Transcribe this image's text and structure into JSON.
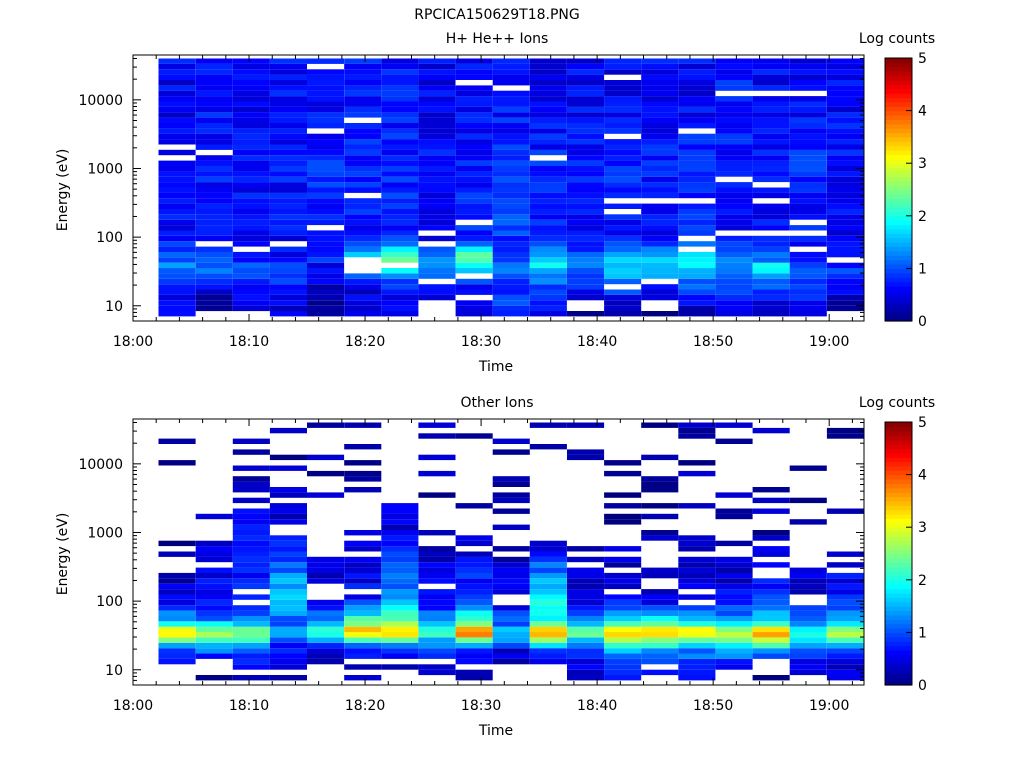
{
  "figure_title": "RPCICA150629T18.PNG",
  "colorbar": {
    "label": "Log counts",
    "ticks": [
      "0",
      "1",
      "2",
      "3",
      "4",
      "5"
    ],
    "range": [
      0,
      5
    ],
    "colormap": [
      "#00007f",
      "#0000ff",
      "#007fff",
      "#00ffff",
      "#7fff7f",
      "#ffff00",
      "#ff7f00",
      "#ff0000",
      "#7f0000"
    ]
  },
  "chart_data": [
    {
      "type": "heatmap",
      "title": "H+ He++ Ions",
      "xlabel": "Time",
      "ylabel": "Energy (eV)",
      "x_ticks": [
        "18:00",
        "18:10",
        "18:20",
        "18:30",
        "18:40",
        "18:50",
        "19:00"
      ],
      "x_range_minutes": [
        0,
        63
      ],
      "y_scale": "log",
      "y_ticks": [
        "10",
        "100",
        "1000",
        "10000"
      ],
      "y_range": [
        6,
        45000
      ],
      "x_bins_start_minutes": [
        2.2,
        5.4,
        8.6,
        11.8,
        15.0,
        18.2,
        21.4,
        24.6,
        27.8,
        31.0,
        34.2,
        37.4,
        40.6,
        43.8,
        47.0,
        50.2,
        53.4,
        56.6,
        59.8
      ],
      "x_bin_width_minutes": 3.2,
      "energy_band_summary": [
        {
          "energy_eV": "10",
          "log_counts": [
            0.6,
            0.0,
            0.6,
            0.5,
            0.3,
            0.4,
            0.6,
            0.0,
            0.4,
            1.0,
            0.7,
            0.0,
            0.4,
            0.0,
            0.4,
            0.5,
            0.5,
            0.7,
            0.0
          ]
        },
        {
          "energy_eV": "20",
          "log_counts": [
            0.6,
            0.8,
            0.6,
            0.7,
            0.4,
            0.6,
            0.8,
            0.7,
            0.8,
            0.9,
            1.0,
            0.9,
            1.1,
            1.0,
            1.1,
            0.9,
            1.0,
            0.8,
            0.7
          ]
        },
        {
          "energy_eV": "35",
          "log_counts": [
            1.3,
            1.4,
            1.0,
            1.0,
            0.6,
            1.5,
            1.8,
            1.1,
            2.0,
            1.2,
            1.8,
            1.1,
            1.6,
            1.5,
            1.6,
            1.2,
            2.1,
            1.0,
            0.9
          ]
        },
        {
          "energy_eV": "50",
          "log_counts": [
            1.1,
            0.9,
            0.8,
            0.7,
            0.8,
            1.9,
            2.3,
            1.2,
            2.4,
            1.0,
            1.6,
            1.0,
            1.7,
            1.8,
            1.7,
            1.3,
            1.1,
            0.8,
            0.8
          ]
        },
        {
          "energy_eV": "100",
          "log_counts": [
            0.6,
            0.7,
            0.6,
            0.6,
            0.7,
            0.7,
            0.7,
            0.6,
            0.8,
            0.9,
            0.7,
            0.6,
            0.7,
            0.6,
            0.8,
            0.6,
            0.6,
            0.7,
            0.6
          ]
        },
        {
          "energy_eV": "1000",
          "log_counts": [
            0.6,
            0.7,
            0.7,
            0.7,
            0.8,
            0.8,
            0.8,
            0.7,
            0.7,
            0.8,
            0.8,
            0.7,
            0.8,
            0.7,
            0.8,
            0.7,
            0.7,
            0.8,
            0.7
          ]
        },
        {
          "energy_eV": "10000",
          "log_counts": [
            0.6,
            0.7,
            0.6,
            0.7,
            0.6,
            0.7,
            0.7,
            0.6,
            0.6,
            0.7,
            0.6,
            0.6,
            0.6,
            0.6,
            0.6,
            0.7,
            0.6,
            0.6,
            0.6
          ]
        }
      ]
    },
    {
      "type": "heatmap",
      "title": "Other Ions",
      "xlabel": "Time",
      "ylabel": "Energy (eV)",
      "x_ticks": [
        "18:00",
        "18:10",
        "18:20",
        "18:30",
        "18:40",
        "18:50",
        "19:00"
      ],
      "x_range_minutes": [
        0,
        63
      ],
      "y_scale": "log",
      "y_ticks": [
        "10",
        "100",
        "1000",
        "10000"
      ],
      "y_range": [
        6,
        45000
      ],
      "x_bins_start_minutes": [
        2.2,
        5.4,
        8.6,
        11.8,
        15.0,
        18.2,
        21.4,
        24.6,
        27.8,
        31.0,
        34.2,
        37.4,
        40.6,
        43.8,
        47.0,
        50.2,
        53.4,
        56.6,
        59.8
      ],
      "x_bin_width_minutes": 3.2,
      "energy_band_summary": [
        {
          "energy_eV": "10",
          "log_counts": [
            0.2,
            0.0,
            0.4,
            0.4,
            0.2,
            0.3,
            0.3,
            0.5,
            0.4,
            0.2,
            0.0,
            0.5,
            0.6,
            0.5,
            0.7,
            0.3,
            0.0,
            0.3,
            0.4
          ]
        },
        {
          "energy_eV": "20",
          "log_counts": [
            1.1,
            1.3,
            1.2,
            0.6,
            0.6,
            0.7,
            0.7,
            0.9,
            0.8,
            0.5,
            1.1,
            0.8,
            1.5,
            1.5,
            1.3,
            1.7,
            1.5,
            1.2,
            1.0
          ]
        },
        {
          "energy_eV": "35",
          "log_counts": [
            3.4,
            3.1,
            2.6,
            1.6,
            2.2,
            3.6,
            3.8,
            2.2,
            4.0,
            1.8,
            3.8,
            2.4,
            3.6,
            3.7,
            3.6,
            3.1,
            4.1,
            2.2,
            2.9
          ]
        },
        {
          "energy_eV": "50",
          "log_counts": [
            1.6,
            1.3,
            1.5,
            1.0,
            1.3,
            2.3,
            2.4,
            1.4,
            2.2,
            1.0,
            2.0,
            1.4,
            2.0,
            1.9,
            1.8,
            1.6,
            1.7,
            1.3,
            1.6
          ]
        },
        {
          "energy_eV": "100",
          "log_counts": [
            0.5,
            0.7,
            0.6,
            1.8,
            0.6,
            0.7,
            1.3,
            0.6,
            1.0,
            0.5,
            2.0,
            0.5,
            0.6,
            0.5,
            0.6,
            0.6,
            0.9,
            0.5,
            0.8
          ]
        },
        {
          "energy_eV": "1000",
          "log_counts": [
            0.0,
            0.3,
            0.9,
            0.5,
            0.2,
            0.3,
            0.5,
            0.3,
            0.3,
            0.3,
            0.2,
            0.3,
            0.2,
            0.2,
            0.2,
            0.2,
            0.2,
            0.2,
            0.2
          ]
        },
        {
          "energy_eV": "10000",
          "log_counts": [
            0.2,
            0.2,
            0.2,
            0.2,
            0.2,
            0.2,
            0.2,
            0.2,
            0.2,
            0.2,
            0.2,
            0.2,
            0.2,
            0.2,
            0.2,
            0.2,
            0.2,
            0.2,
            0.2
          ]
        }
      ]
    }
  ]
}
